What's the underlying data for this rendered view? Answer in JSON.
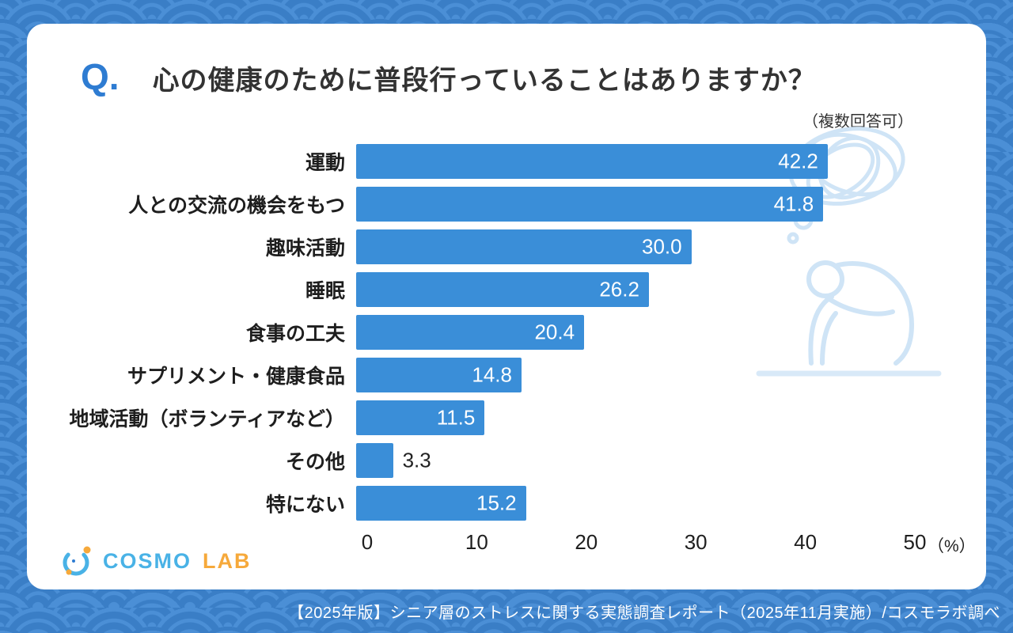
{
  "colors": {
    "background": "#4b8fd6",
    "pattern_line": "#3a7ec6",
    "accent": "#2e7cd2",
    "bar": "#3a8ed8",
    "logo_blue": "#49b2e6",
    "logo_orange": "#f6a93b",
    "footer_text": "#ffffff",
    "illustration": "#cfe4f6"
  },
  "header": {
    "q_label": "Q.",
    "title": "心の健康のために普段行っていることはありますか？",
    "note": "（複数回答可）"
  },
  "chart_data": {
    "type": "bar",
    "orientation": "horizontal",
    "title": "心の健康のために普段行っていることはありますか？",
    "categories": [
      "運動",
      "人との交流の機会をもつ",
      "趣味活動",
      "睡眠",
      "食事の工夫",
      "サプリメント・健康食品",
      "地域活動（ボランティアなど）",
      "その他",
      "特にない"
    ],
    "values": [
      42.2,
      41.8,
      30.0,
      26.2,
      20.4,
      14.8,
      11.5,
      3.3,
      15.2
    ],
    "value_labels": [
      "42.2",
      "41.8",
      "30.0",
      "26.2",
      "20.4",
      "14.8",
      "11.5",
      "3.3",
      "15.2"
    ],
    "x_ticks": [
      0,
      10,
      20,
      30,
      40,
      50
    ],
    "x_unit": "（%）",
    "xlim": [
      0,
      50
    ],
    "bar_color": "#3a8ed8",
    "inside_label_min": 6,
    "grid": false,
    "legend": "none"
  },
  "logo": {
    "brand": "COSMO",
    "suffix": "LAB"
  },
  "footer": {
    "text": "【2025年版】シニア層のストレスに関する実態調査レポート（2025年11月実施）/コスモラボ調べ"
  }
}
